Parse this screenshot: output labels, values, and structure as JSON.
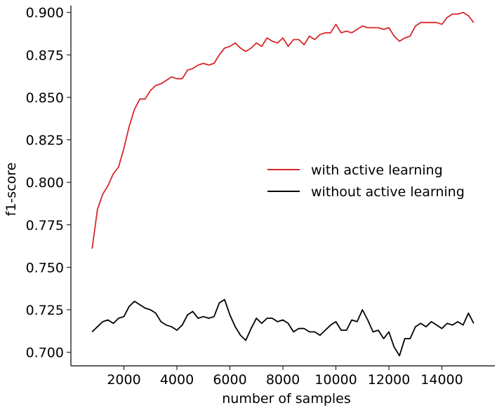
{
  "chart_data": {
    "type": "line",
    "xlabel": "number of samples",
    "ylabel": "f1-score",
    "xlim": [
      0,
      16000
    ],
    "ylim": [
      0.692,
      0.904
    ],
    "xticks": [
      {
        "value": 2000,
        "label": "2000"
      },
      {
        "value": 4000,
        "label": "4000"
      },
      {
        "value": 6000,
        "label": "6000"
      },
      {
        "value": 8000,
        "label": "8000"
      },
      {
        "value": 10000,
        "label": "10000"
      },
      {
        "value": 12000,
        "label": "12000"
      },
      {
        "value": 14000,
        "label": "14000"
      }
    ],
    "yticks": [
      {
        "value": 0.7,
        "label": "0.700"
      },
      {
        "value": 0.725,
        "label": "0.725"
      },
      {
        "value": 0.75,
        "label": "0.750"
      },
      {
        "value": 0.775,
        "label": "0.775"
      },
      {
        "value": 0.8,
        "label": "0.800"
      },
      {
        "value": 0.825,
        "label": "0.825"
      },
      {
        "value": 0.85,
        "label": "0.850"
      },
      {
        "value": 0.875,
        "label": "0.875"
      },
      {
        "value": 0.9,
        "label": "0.900"
      }
    ],
    "grid": false,
    "legend_position": "center-right",
    "x": [
      800,
      1000,
      1200,
      1400,
      1600,
      1800,
      2000,
      2200,
      2400,
      2600,
      2800,
      3000,
      3200,
      3400,
      3600,
      3800,
      4000,
      4200,
      4400,
      4600,
      4800,
      5000,
      5200,
      5400,
      5600,
      5800,
      6000,
      6200,
      6400,
      6600,
      6800,
      7000,
      7200,
      7400,
      7600,
      7800,
      8000,
      8200,
      8400,
      8600,
      8800,
      9000,
      9200,
      9400,
      9600,
      9800,
      10000,
      10200,
      10400,
      10600,
      10800,
      11000,
      11200,
      11400,
      11600,
      11800,
      12000,
      12200,
      12400,
      12600,
      12800,
      13000,
      13200,
      13400,
      13600,
      13800,
      14000,
      14200,
      14400,
      14600,
      14800,
      15000,
      15200
    ],
    "series": [
      {
        "name": "with active learning",
        "color": "#d62728",
        "values": [
          0.761,
          0.784,
          0.793,
          0.798,
          0.805,
          0.809,
          0.82,
          0.833,
          0.843,
          0.849,
          0.849,
          0.854,
          0.857,
          0.858,
          0.86,
          0.862,
          0.861,
          0.861,
          0.866,
          0.867,
          0.869,
          0.87,
          0.869,
          0.87,
          0.875,
          0.879,
          0.88,
          0.882,
          0.879,
          0.877,
          0.879,
          0.882,
          0.88,
          0.885,
          0.883,
          0.882,
          0.885,
          0.88,
          0.884,
          0.884,
          0.881,
          0.886,
          0.884,
          0.887,
          0.888,
          0.888,
          0.893,
          0.888,
          0.889,
          0.888,
          0.89,
          0.892,
          0.891,
          0.891,
          0.891,
          0.89,
          0.891,
          0.886,
          0.883,
          0.885,
          0.886,
          0.892,
          0.894,
          0.894,
          0.894,
          0.894,
          0.893,
          0.897,
          0.899,
          0.899,
          0.9,
          0.898,
          0.894
        ]
      },
      {
        "name": "without active learning",
        "color": "#000000",
        "values": [
          0.712,
          0.715,
          0.718,
          0.719,
          0.717,
          0.72,
          0.721,
          0.727,
          0.73,
          0.728,
          0.726,
          0.725,
          0.723,
          0.718,
          0.716,
          0.715,
          0.713,
          0.716,
          0.722,
          0.724,
          0.72,
          0.721,
          0.72,
          0.721,
          0.729,
          0.731,
          0.722,
          0.715,
          0.71,
          0.707,
          0.714,
          0.72,
          0.717,
          0.72,
          0.72,
          0.718,
          0.719,
          0.717,
          0.712,
          0.714,
          0.714,
          0.712,
          0.712,
          0.71,
          0.713,
          0.716,
          0.718,
          0.713,
          0.713,
          0.719,
          0.718,
          0.725,
          0.719,
          0.712,
          0.713,
          0.708,
          0.712,
          0.703,
          0.698,
          0.708,
          0.708,
          0.715,
          0.717,
          0.715,
          0.718,
          0.716,
          0.714,
          0.717,
          0.716,
          0.718,
          0.716,
          0.723,
          0.717
        ]
      }
    ]
  }
}
